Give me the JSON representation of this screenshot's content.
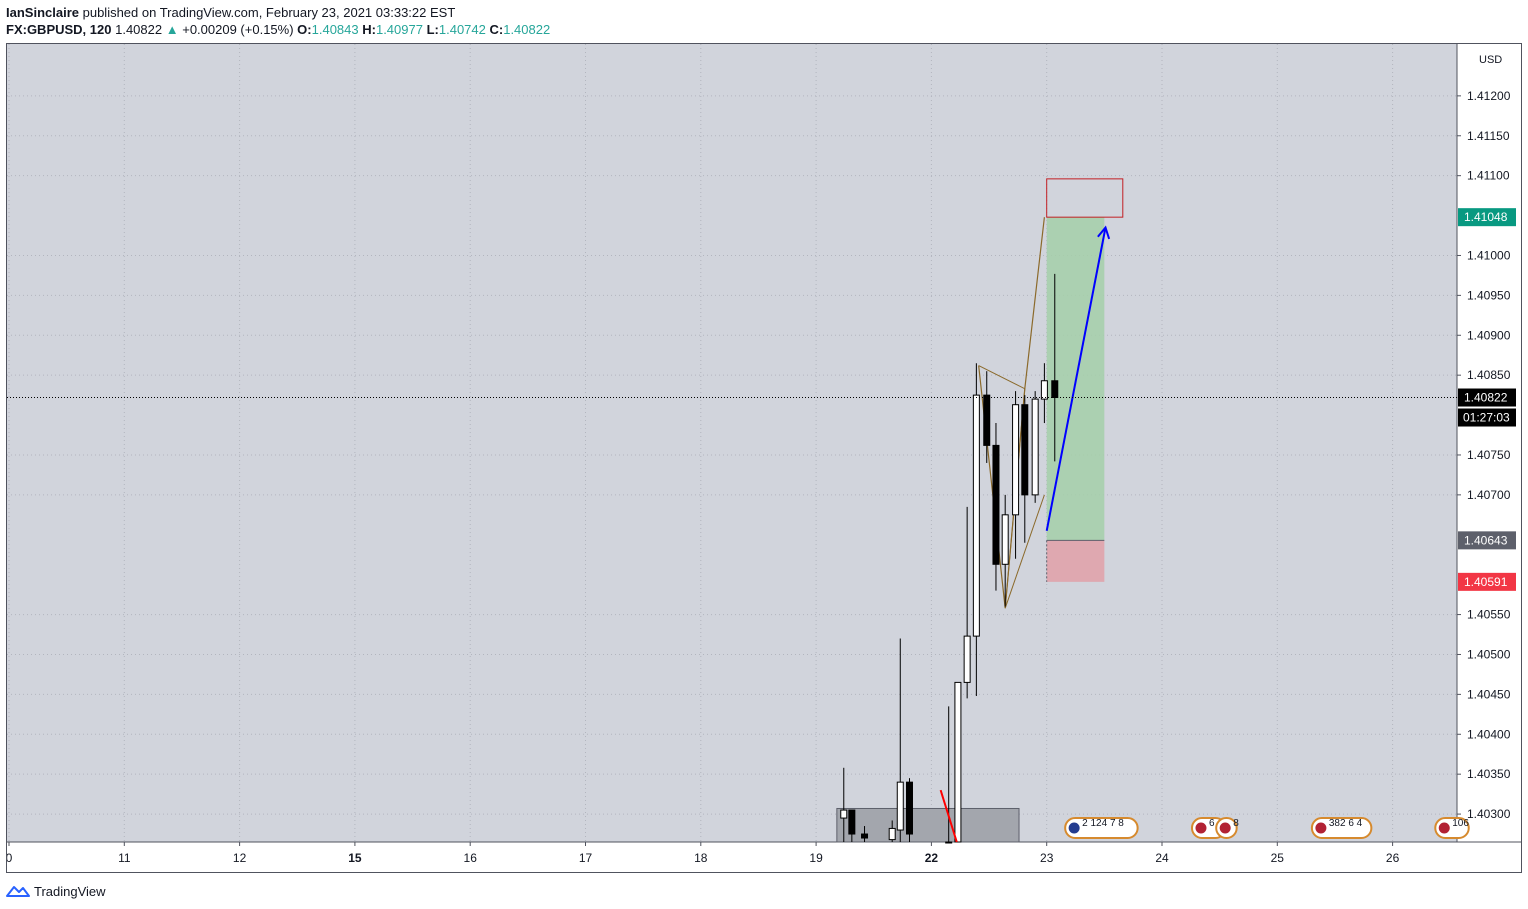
{
  "header": {
    "author": "IanSinclaire",
    "published_text": "published on TradingView.com, February 23, 2021 03:33:22 EST",
    "symbol": "FX:GBPUSD, 120",
    "last": "1.40822",
    "change_arrow": "▲",
    "change": "+0.00209 (+0.15%)",
    "o_label": "O:",
    "o_value": "1.40843",
    "h_label": "H:",
    "h_value": "1.40977",
    "l_label": "L:",
    "l_value": "1.40742",
    "c_label": "C:",
    "c_value": "1.40822"
  },
  "footer": {
    "brand": "TradingView",
    "logo_icon": "tradingview-logo-icon"
  },
  "colors": {
    "plot_bg": "#d1d4dc",
    "grid": "#b2b5be",
    "candle_up": "#ffffff",
    "candle_down": "#000000",
    "target_zone": "#a5cfa9",
    "stop_zone": "#e0a3ab",
    "arrow": "#0000ff",
    "pattern": "#8b6a2b",
    "box_red": "#c21f24",
    "gray_box": "#a3a6ad",
    "badge_green": "#089981",
    "badge_red": "#f23645",
    "badge_gray": "#5d606b",
    "badge_black": "#000000"
  },
  "chart_data": {
    "type": "candlestick",
    "currency_label": "USD",
    "ylim": [
      1.40265,
      1.41265
    ],
    "y_ticks": [
      "1.41200",
      "1.41150",
      "1.41100",
      "1.41000",
      "1.40950",
      "1.40900",
      "1.40850",
      "1.40750",
      "1.40700",
      "1.40550",
      "1.40500",
      "1.40450",
      "1.40400",
      "1.40350",
      "1.40300"
    ],
    "y_tick_values": [
      1.412,
      1.4115,
      1.411,
      1.41,
      1.4095,
      1.409,
      1.4085,
      1.4075,
      1.407,
      1.4055,
      1.405,
      1.4045,
      1.404,
      1.4035,
      1.403
    ],
    "x_ticks": [
      {
        "label": "0",
        "day": 10,
        "bold": false
      },
      {
        "label": "11",
        "day": 11,
        "bold": false
      },
      {
        "label": "12",
        "day": 12,
        "bold": false
      },
      {
        "label": "15",
        "day": 13,
        "bold": true
      },
      {
        "label": "16",
        "day": 14,
        "bold": false
      },
      {
        "label": "17",
        "day": 15,
        "bold": false
      },
      {
        "label": "18",
        "day": 16,
        "bold": false
      },
      {
        "label": "19",
        "day": 17,
        "bold": false
      },
      {
        "label": "22",
        "day": 18,
        "bold": true
      },
      {
        "label": "23",
        "day": 19,
        "bold": false
      },
      {
        "label": "24",
        "day": 20,
        "bold": false
      },
      {
        "label": "25",
        "day": 21,
        "bold": false
      },
      {
        "label": "26",
        "day": 22,
        "bold": false
      }
    ],
    "candles": [
      {
        "t": 17.24,
        "o": 1.40295,
        "h": 1.40358,
        "l": 1.40265,
        "c": 1.40305
      },
      {
        "t": 17.31,
        "o": 1.40305,
        "h": 1.40305,
        "l": 1.40265,
        "c": 1.40275
      },
      {
        "t": 17.42,
        "o": 1.40275,
        "h": 1.40285,
        "l": 1.40265,
        "c": 1.4027
      },
      {
        "t": 17.66,
        "o": 1.40268,
        "h": 1.40292,
        "l": 1.40265,
        "c": 1.40282
      },
      {
        "t": 17.73,
        "o": 1.4028,
        "h": 1.4052,
        "l": 1.40265,
        "c": 1.4034
      },
      {
        "t": 17.81,
        "o": 1.4034,
        "h": 1.40345,
        "l": 1.40265,
        "c": 1.40275
      },
      {
        "t": 18.15,
        "o": 1.40265,
        "h": 1.40435,
        "l": 1.40265,
        "c": 1.40265
      },
      {
        "t": 18.23,
        "o": 1.40265,
        "h": 1.40465,
        "l": 1.40265,
        "c": 1.40465
      },
      {
        "t": 18.31,
        "o": 1.40465,
        "h": 1.40685,
        "l": 1.40445,
        "c": 1.40523
      },
      {
        "t": 18.39,
        "o": 1.40523,
        "h": 1.40865,
        "l": 1.40448,
        "c": 1.40825
      },
      {
        "t": 18.48,
        "o": 1.40825,
        "h": 1.40855,
        "l": 1.4074,
        "c": 1.40762
      },
      {
        "t": 18.56,
        "o": 1.40762,
        "h": 1.4079,
        "l": 1.4058,
        "c": 1.40613
      },
      {
        "t": 18.64,
        "o": 1.40613,
        "h": 1.407,
        "l": 1.4056,
        "c": 1.40675
      },
      {
        "t": 18.73,
        "o": 1.40675,
        "h": 1.4083,
        "l": 1.4062,
        "c": 1.40813
      },
      {
        "t": 18.81,
        "o": 1.40813,
        "h": 1.40825,
        "l": 1.4064,
        "c": 1.407
      },
      {
        "t": 18.9,
        "o": 1.407,
        "h": 1.4083,
        "l": 1.4069,
        "c": 1.4082
      },
      {
        "t": 18.98,
        "o": 1.4082,
        "h": 1.40865,
        "l": 1.4079,
        "c": 1.40843
      },
      {
        "t": 19.07,
        "o": 1.40843,
        "h": 1.40977,
        "l": 1.40742,
        "c": 1.40822
      }
    ],
    "price_badges": [
      {
        "value": 1.41048,
        "label": "1.41048",
        "color": "green"
      },
      {
        "value": 1.40822,
        "label": "1.40822",
        "color": "black",
        "sub": "01:27:03"
      },
      {
        "value": 1.40643,
        "label": "1.40643",
        "color": "gray"
      },
      {
        "value": 1.40591,
        "label": "1.40591",
        "color": "red"
      }
    ],
    "target_zone": {
      "t1": 19.0,
      "t2": 19.5,
      "top": 1.41048,
      "bottom": 1.40643
    },
    "stop_zone": {
      "t1": 19.0,
      "t2": 19.5,
      "top": 1.40643,
      "bottom": 1.40591
    },
    "red_box": {
      "t1": 19.0,
      "t2": 19.66,
      "top": 1.41096,
      "bottom": 1.41048
    },
    "gray_box": {
      "t1": 17.18,
      "t2": 18.76,
      "top": 1.40307,
      "bottom": 1.40265
    },
    "arrow": {
      "from": [
        19.0,
        1.40655
      ],
      "to": [
        19.51,
        1.41035
      ]
    },
    "red_line": {
      "from": [
        18.08,
        1.4033
      ],
      "to": [
        18.22,
        1.40265
      ]
    },
    "pattern_points": [
      [
        18.41,
        1.40862
      ],
      [
        18.64,
        1.40558
      ],
      [
        18.81,
        1.40833
      ],
      [
        18.98,
        1.41048
      ]
    ],
    "pattern_side": [
      [
        18.41,
        1.40862
      ],
      [
        18.81,
        1.40833
      ],
      [
        18.64,
        1.40558
      ],
      [
        18.98,
        1.407
      ]
    ],
    "events": [
      {
        "day": 19.16,
        "text": "2 124 7 8",
        "flag": "uk"
      },
      {
        "day": 20.26,
        "text": "6 4",
        "flag": "us"
      },
      {
        "day": 20.47,
        "text": "8",
        "flag": "us"
      },
      {
        "day": 21.3,
        "text": "382 6 4",
        "flag": "us"
      },
      {
        "day": 22.37,
        "text": "106",
        "flag": "us"
      }
    ]
  }
}
